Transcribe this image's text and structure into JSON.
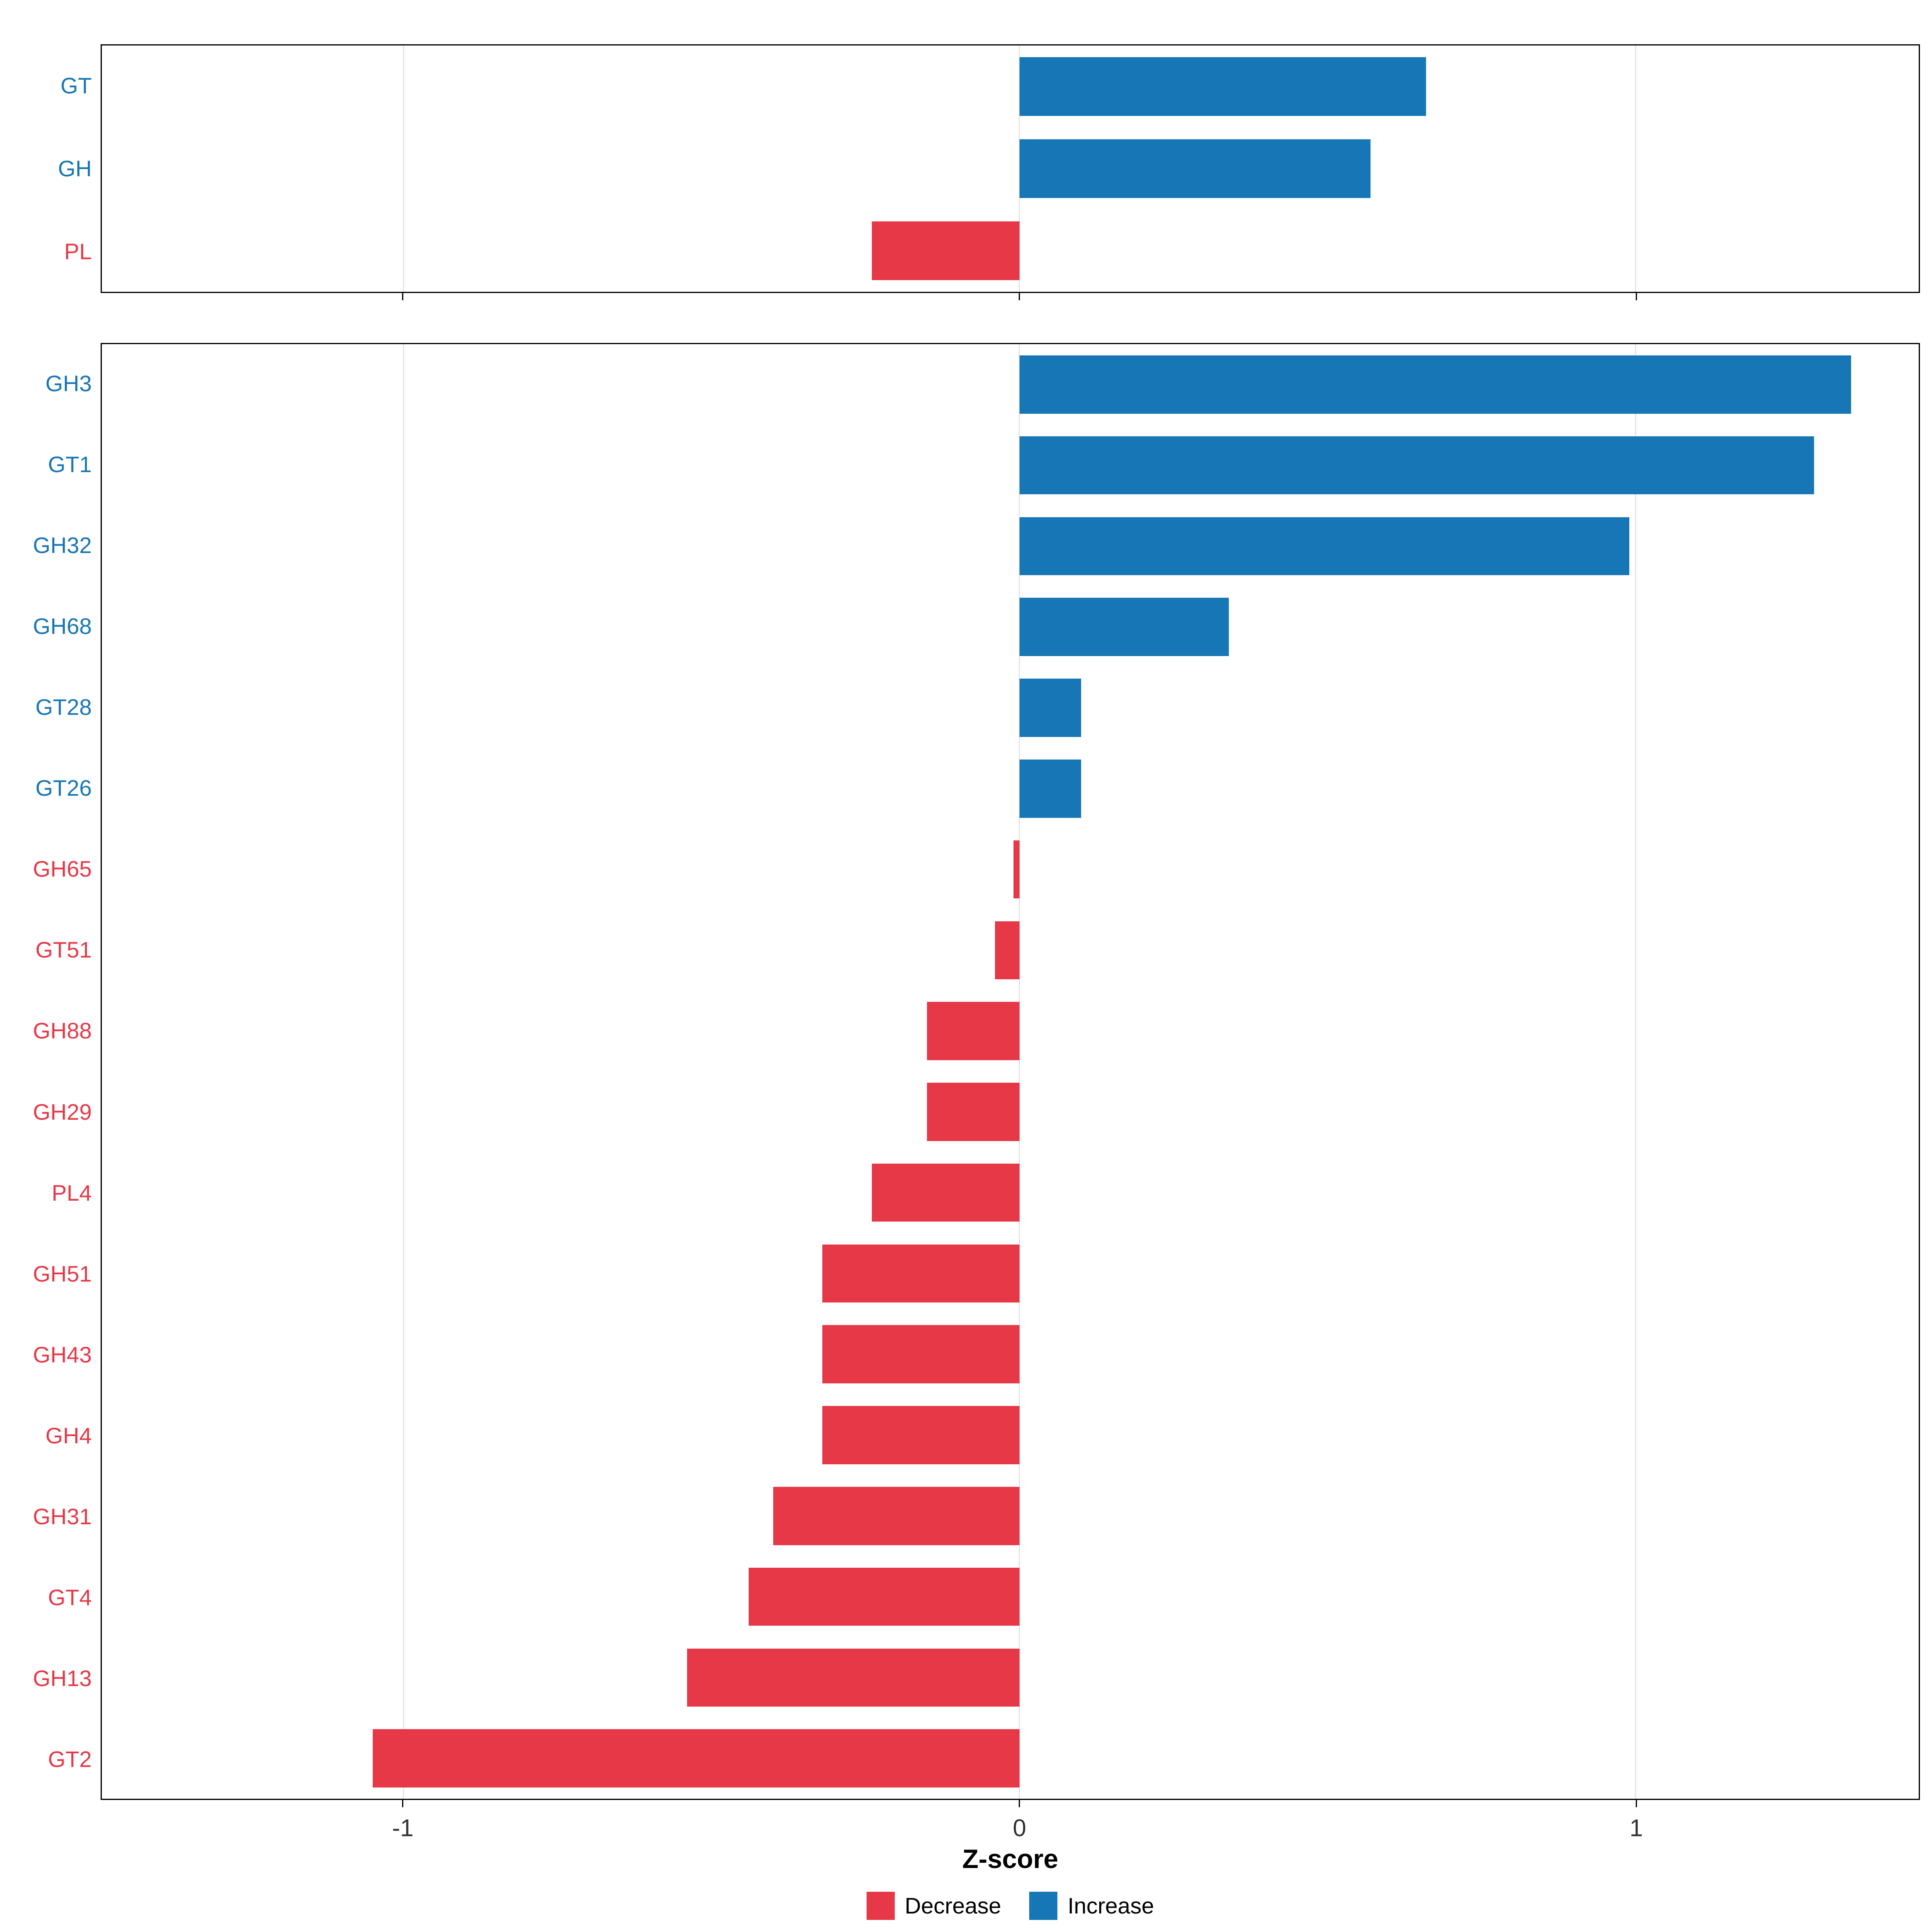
{
  "xlabel": "Z-score",
  "colors": {
    "increase": "#1776b5",
    "decrease": "#e73847",
    "gridline": "#e4e4e4"
  },
  "legend": [
    {
      "label": "Decrease",
      "key": "decrease"
    },
    {
      "label": "Increase",
      "key": "increase"
    }
  ],
  "chart_data": [
    {
      "type": "bar",
      "orientation": "horizontal",
      "panel": "top",
      "title": "",
      "categories": [
        "GT",
        "GH",
        "PL"
      ],
      "values": [
        0.66,
        0.57,
        -0.24
      ],
      "xlim": [
        -1.49,
        1.46
      ],
      "xticks": [
        -1,
        0,
        1
      ],
      "xtick_labels": [
        "-1",
        "0",
        "1"
      ],
      "grid": true,
      "bar_colors_rule": "positive=increase(blue), negative=decrease(red)"
    },
    {
      "type": "bar",
      "orientation": "horizontal",
      "panel": "bottom",
      "title": "",
      "categories": [
        "GH3",
        "GT1",
        "GH32",
        "GH68",
        "GT28",
        "GT26",
        "GH65",
        "GT51",
        "GH88",
        "GH29",
        "PL4",
        "GH51",
        "GH43",
        "GH4",
        "GH31",
        "GT4",
        "GH13",
        "GT2"
      ],
      "values": [
        1.35,
        1.29,
        0.99,
        0.34,
        0.1,
        0.1,
        -0.01,
        -0.04,
        -0.15,
        -0.15,
        -0.24,
        -0.32,
        -0.32,
        -0.32,
        -0.4,
        -0.44,
        -0.54,
        -1.05
      ],
      "xlim": [
        -1.49,
        1.46
      ],
      "xticks": [
        -1,
        0,
        1
      ],
      "xtick_labels": [
        "-1",
        "0",
        "1"
      ],
      "grid": true,
      "bar_colors_rule": "positive=increase(blue), negative=decrease(red)"
    }
  ]
}
